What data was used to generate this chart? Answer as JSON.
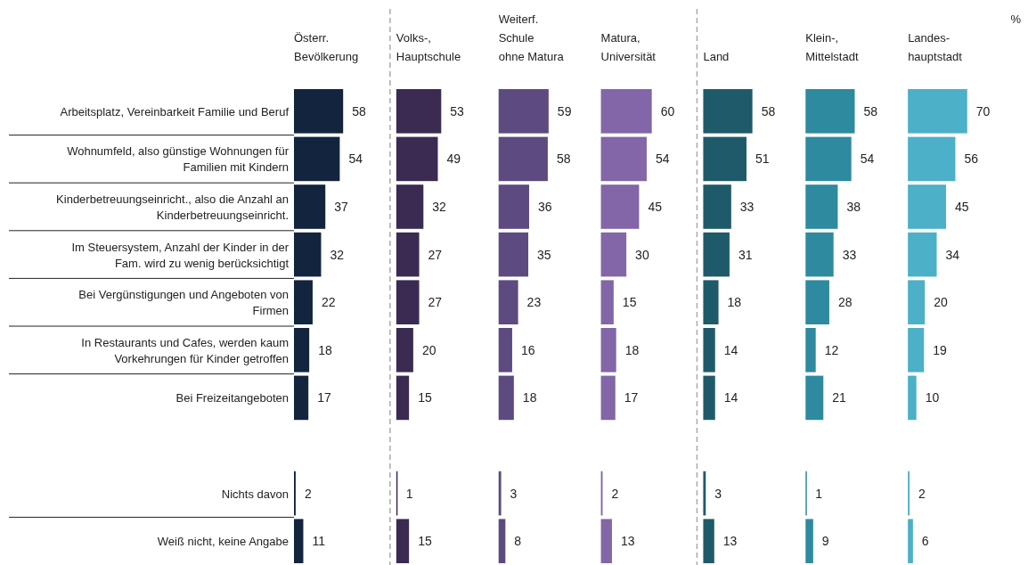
{
  "chart_data": [
    {
      "type": "bar",
      "orientation": "horizontal",
      "title": "Österr.\nBevölkerung",
      "categories": [
        "Arbeitsplatz, Vereinbarkeit Familie und Beruf",
        "Wohnumfeld, also günstige Wohnungen für Familien mit Kindern",
        "Kinderbetreuungseinricht., also die Anzahl an Kinderbetreuungseinricht.",
        "Im Steuersystem, Anzahl der Kinder in der Fam. wird zu wenig berücksichtigt",
        "Bei Vergünstigungen und Angeboten von Firmen",
        "In Restaurants und Cafes, werden kaum Vorkehrungen für Kinder getroffen",
        "Bei Freizeitangeboten",
        null,
        "Nichts davon",
        "Weiß nicht, keine Angabe"
      ],
      "values": [
        58,
        54,
        37,
        32,
        22,
        18,
        17,
        null,
        2,
        11
      ],
      "color": "#13243f",
      "data_labels": true,
      "tick_labels": "y"
    },
    {
      "type": "bar",
      "orientation": "horizontal",
      "title": "Volks-,\nHauptschule",
      "values": [
        53,
        49,
        32,
        27,
        27,
        20,
        15,
        null,
        1,
        15
      ],
      "color": "#3b2b52",
      "data_labels": true,
      "tick_labels": false
    },
    {
      "type": "bar",
      "orientation": "horizontal",
      "title": "Weiterf.\nSchule\nohne Matura",
      "values": [
        59,
        58,
        36,
        35,
        23,
        16,
        18,
        null,
        3,
        8
      ],
      "color": "#5c4a80",
      "data_labels": true,
      "tick_labels": false
    },
    {
      "type": "bar",
      "orientation": "horizontal",
      "title": "Matura,\nUniversität",
      "values": [
        60,
        54,
        45,
        30,
        15,
        18,
        17,
        null,
        2,
        13
      ],
      "color": "#8266a8",
      "data_labels": true,
      "tick_labels": false
    },
    {
      "type": "bar",
      "orientation": "horizontal",
      "title": "Land",
      "values": [
        58,
        51,
        33,
        31,
        18,
        14,
        14,
        null,
        3,
        13
      ],
      "color": "#1f5a6a",
      "data_labels": true,
      "tick_labels": false
    },
    {
      "type": "bar",
      "orientation": "horizontal",
      "title": "Klein-,\nMittelstadt",
      "values": [
        58,
        54,
        38,
        33,
        28,
        12,
        21,
        null,
        1,
        9
      ],
      "color": "#2e8a9e",
      "data_labels": true,
      "tick_labels": false
    },
    {
      "type": "bar",
      "orientation": "horizontal",
      "title": "Landes-\nhauptstadt",
      "values": [
        70,
        56,
        45,
        34,
        20,
        19,
        10,
        null,
        2,
        6
      ],
      "color": "#4bb0c8",
      "data_labels": true,
      "tick_labels": false,
      "annotations": [
        "%"
      ]
    }
  ]
}
